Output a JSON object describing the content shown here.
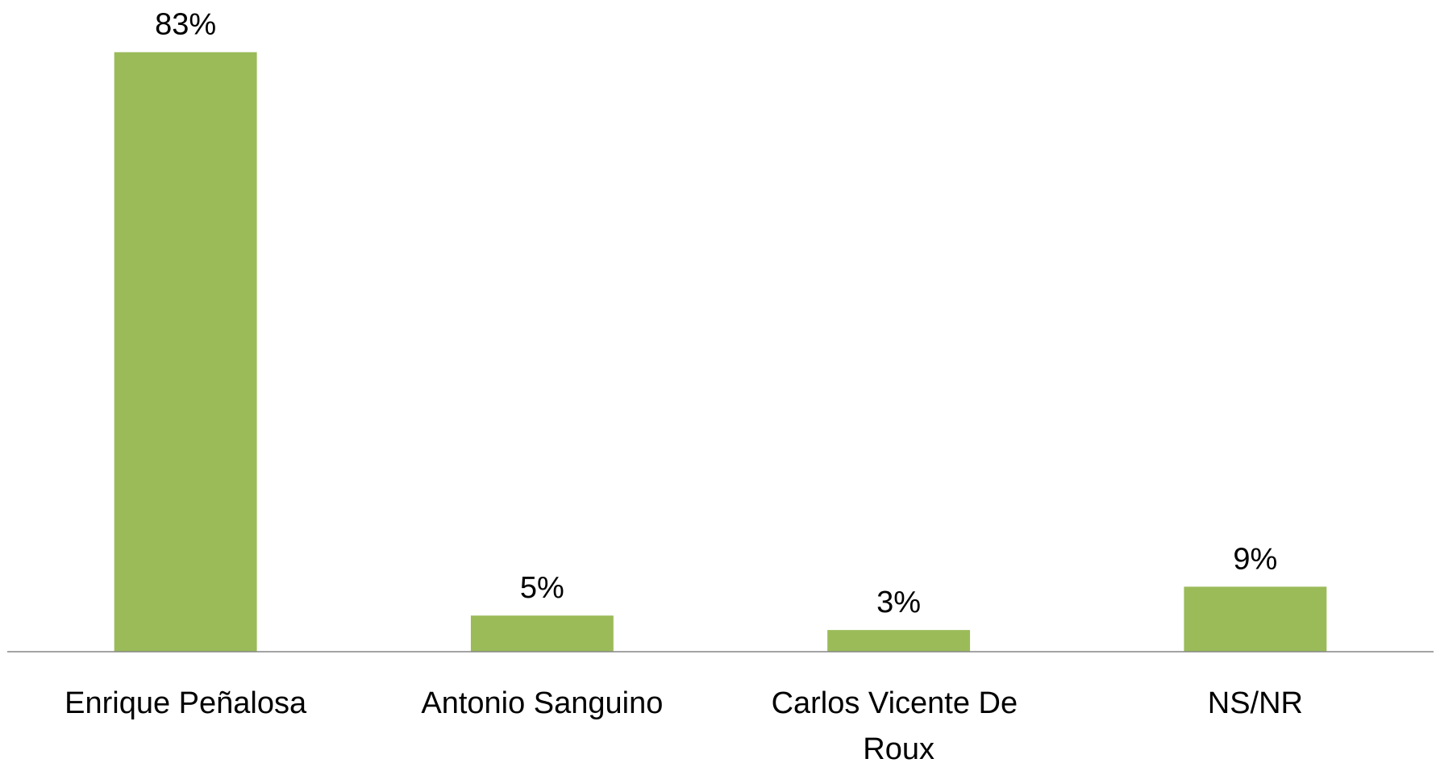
{
  "chart_data": {
    "type": "bar",
    "categories": [
      "Enrique Peñalosa",
      "Antonio Sanguino",
      "Carlos Vicente De Roux",
      "NS/NR"
    ],
    "values": [
      83,
      5,
      3,
      9
    ],
    "value_labels": [
      "83%",
      "5%",
      "3%",
      "9%"
    ],
    "color": "#9bbb59",
    "ylim": [
      0,
      90
    ]
  }
}
